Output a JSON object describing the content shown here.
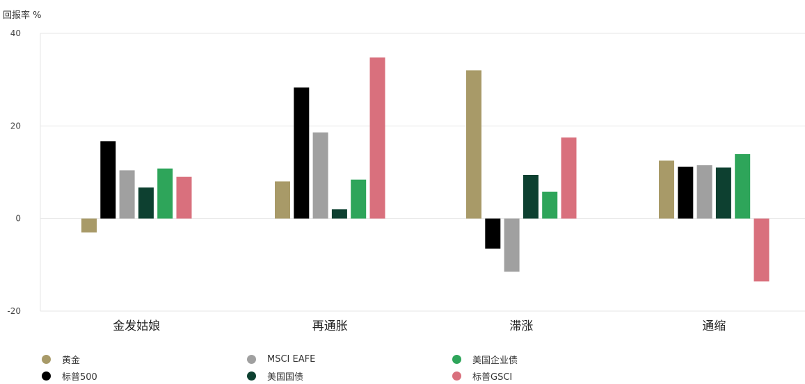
{
  "chart_data": {
    "type": "bar",
    "ylabel": "回报率 %",
    "ylim": [
      -20,
      40
    ],
    "yticks": [
      "40",
      "20",
      "0",
      "-20"
    ],
    "categories": [
      "金发姑娘",
      "再通胀",
      "滞涨",
      "通缩"
    ],
    "series": [
      {
        "name": "黄金",
        "color": "#a89a68",
        "values": [
          -3,
          8,
          32,
          12.5
        ]
      },
      {
        "name": "标普500",
        "color": "#000000",
        "values": [
          16.7,
          28.3,
          -6.5,
          11.2
        ]
      },
      {
        "name": "MSCI EAFE",
        "color": "#a0a0a0",
        "values": [
          10.4,
          18.6,
          -11.5,
          11.5
        ]
      },
      {
        "name": "美国国债",
        "color": "#0d4030",
        "values": [
          6.7,
          2.0,
          9.4,
          11.0
        ]
      },
      {
        "name": "美国企业债",
        "color": "#2ea55a",
        "values": [
          10.8,
          8.4,
          5.8,
          13.9
        ]
      },
      {
        "name": "标普GSCI",
        "color": "#d9707d",
        "values": [
          9.0,
          34.8,
          17.5,
          -13.6
        ]
      }
    ],
    "grid": true,
    "legend": "bottom"
  }
}
